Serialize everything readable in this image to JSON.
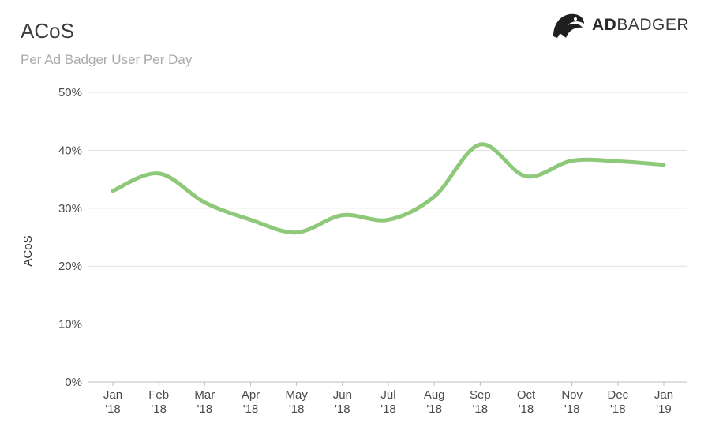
{
  "header": {
    "title": "ACoS",
    "subtitle": "Per Ad Badger User Per Day"
  },
  "logo": {
    "bold_text": "AD",
    "light_text": "BADGER",
    "icon": "badger-head-icon"
  },
  "colors": {
    "line": "#8ec97a",
    "grid": "#dddddd",
    "title": "#3c3c3c",
    "subtitle": "#a9a9a9"
  },
  "chart_data": {
    "type": "line",
    "title": "ACoS",
    "subtitle": "Per Ad Badger User Per Day",
    "xlabel": "",
    "ylabel": "ACoS",
    "ylim": [
      0,
      50
    ],
    "yticks": [
      "0%",
      "10%",
      "20%",
      "30%",
      "40%",
      "50%"
    ],
    "grid": true,
    "categories": [
      [
        "Jan",
        "'18"
      ],
      [
        "Feb",
        "'18"
      ],
      [
        "Mar",
        "'18"
      ],
      [
        "Apr",
        "'18"
      ],
      [
        "May",
        "'18"
      ],
      [
        "Jun",
        "'18"
      ],
      [
        "Jul",
        "'18"
      ],
      [
        "Aug",
        "'18"
      ],
      [
        "Sep",
        "'18"
      ],
      [
        "Oct",
        "'18"
      ],
      [
        "Nov",
        "'18"
      ],
      [
        "Dec",
        "'18"
      ],
      [
        "Jan",
        "'19"
      ]
    ],
    "series": [
      {
        "values": [
          33.0,
          36.0,
          31.0,
          28.0,
          25.8,
          28.8,
          28.0,
          32.0,
          41.0,
          35.5,
          38.2,
          38.1,
          37.5
        ]
      }
    ]
  }
}
